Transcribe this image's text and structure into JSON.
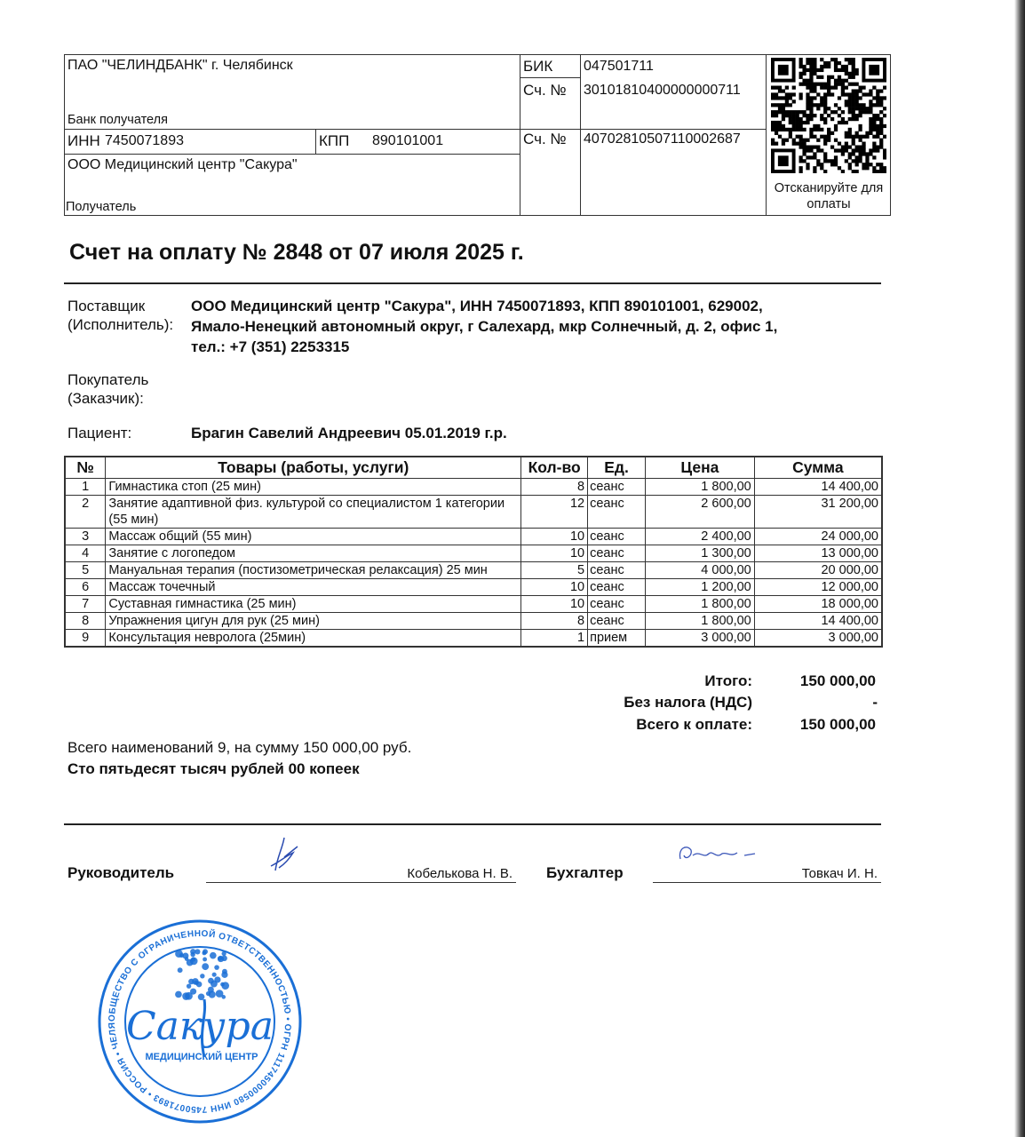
{
  "bank": {
    "bank_name": "ПАО \"ЧЕЛИНДБАНК\" г. Челябинск",
    "bank_label": "Банк получателя",
    "bik_label": "БИК",
    "bik": "047501711",
    "corr_label": "Сч. №",
    "corr_account": "30101810400000000711",
    "inn_label": "ИНН",
    "inn": "7450071893",
    "kpp_label": "КПП",
    "kpp": "890101001",
    "account_label": "Сч. №",
    "account": "40702810507110002687",
    "recipient": "ООО Медицинский центр \"Сакура\"",
    "recipient_label": "Получатель",
    "qr_caption": "Отсканируйте для оплаты"
  },
  "title": "Счет на оплату № 2848 от 07 июля 2025 г.",
  "supplier": {
    "label1": "Поставщик",
    "label2": "(Исполнитель):",
    "lines": [
      "ООО Медицинский центр \"Сакура\", ИНН 7450071893, КПП 890101001, 629002,",
      "Ямало-Ненецкий автономный округ, г Салехард, мкр Солнечный, д. 2, офис 1,",
      "тел.: +7 (351) 2253315"
    ]
  },
  "buyer": {
    "label1": "Покупатель",
    "label2": "(Заказчик):"
  },
  "patient": {
    "label": "Пациент:",
    "value": "Брагин Савелий Андреевич 05.01.2019 г.р."
  },
  "table": {
    "headers": [
      "№",
      "Товары (работы, услуги)",
      "Кол-во",
      "Ед.",
      "Цена",
      "Сумма"
    ],
    "rows": [
      [
        "1",
        "Гимнастика стоп (25 мин)",
        "8",
        "сеанс",
        "1 800,00",
        "14 400,00"
      ],
      [
        "2",
        "Занятие адаптивной физ. культурой со специалистом 1 категории (55 мин)",
        "12",
        "сеанс",
        "2 600,00",
        "31 200,00"
      ],
      [
        "3",
        "Массаж общий (55 мин)",
        "10",
        "сеанс",
        "2 400,00",
        "24 000,00"
      ],
      [
        "4",
        "Занятие с логопедом",
        "10",
        "сеанс",
        "1 300,00",
        "13 000,00"
      ],
      [
        "5",
        "Мануальная терапия (постизометрическая релаксация) 25 мин",
        "5",
        "сеанс",
        "4 000,00",
        "20 000,00"
      ],
      [
        "6",
        "Массаж точечный",
        "10",
        "сеанс",
        "1 200,00",
        "12 000,00"
      ],
      [
        "7",
        "Суставная гимнастика (25 мин)",
        "10",
        "сеанс",
        "1 800,00",
        "18 000,00"
      ],
      [
        "8",
        "Упражнения цигун для рук (25 мин)",
        "8",
        "сеанс",
        "1 800,00",
        "14 400,00"
      ],
      [
        "9",
        "Консультация невролога (25мин)",
        "1",
        "прием",
        "3 000,00",
        "3 000,00"
      ]
    ]
  },
  "totals": {
    "total_label": "Итого:",
    "total": "150 000,00",
    "vat_label": "Без налога (НДС)",
    "vat": "-",
    "due_label": "Всего к оплате:",
    "due": "150 000,00"
  },
  "summary": {
    "count_line": "Всего наименований 9, на сумму 150 000,00 руб.",
    "words": "Сто пятьдесят тысяч рублей 00 копеек"
  },
  "signatures": {
    "head_label": "Руководитель",
    "head_name": "Кобелькова Н. В.",
    "accountant_label": "Бухгалтер",
    "accountant_name": "Товкач И. Н."
  },
  "stamp": {
    "ring_text": "ОБЩЕСТВО С ОГРАНИЧЕННОЙ ОТВЕТСТВЕННОСТЬЮ • ОГРН 1117450000580 ИНН 7450071893 • РОССИЯ • ЧЕЛЯБИНСК •",
    "logo": "Сакура",
    "subtitle": "МЕДИЦИНСКИЙ ЦЕНТР",
    "color": "#1a6fd6"
  }
}
